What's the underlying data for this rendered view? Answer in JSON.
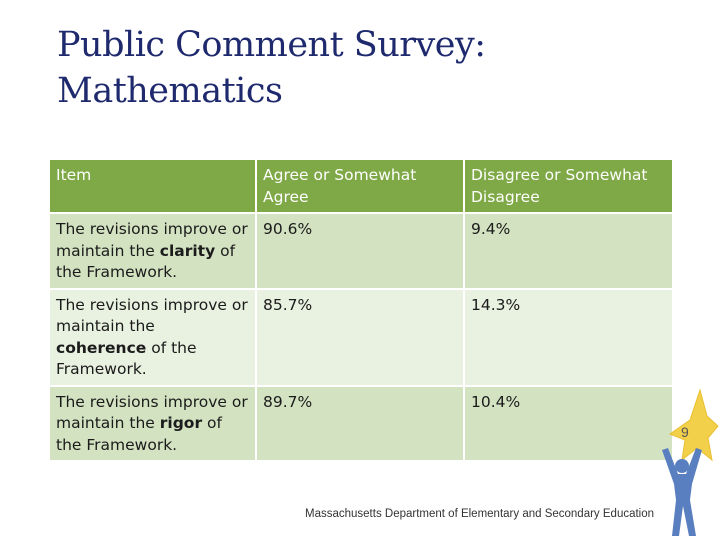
{
  "slide": {
    "title_lines": [
      "Public Comment Survey:",
      "Mathematics"
    ],
    "footer": "Massachusetts Department of Elementary and Secondary Education",
    "page_number": "9"
  },
  "table": {
    "headers": [
      "Item",
      "Agree or Somewhat Agree",
      "Disagree or Somewhat Disagree"
    ],
    "rows": [
      {
        "item_prefix": "The revisions improve or maintain the",
        "item_keyword": "clarity",
        "item_suffix": "of the Framework.",
        "agree": "90.6%",
        "disagree": "9.4%"
      },
      {
        "item_prefix": "The revisions improve or maintain the",
        "item_keyword": "coherence",
        "item_suffix": "of the Framework.",
        "agree": "85.7%",
        "disagree": "14.3%"
      },
      {
        "item_prefix": "The revisions improve or maintain the",
        "item_keyword": "rigor",
        "item_suffix": "of the Framework.",
        "agree": "89.7%",
        "disagree": "10.4%"
      }
    ]
  },
  "colors": {
    "title": "#1f2a6e",
    "header_bg": "#7fa846",
    "row_odd_bg": "#d3e3c2",
    "row_even_bg": "#e9f1e1",
    "star": "#f3d04a",
    "figure": "#5a7fc0"
  },
  "icons": {
    "logo": "star-person-logo-icon"
  }
}
